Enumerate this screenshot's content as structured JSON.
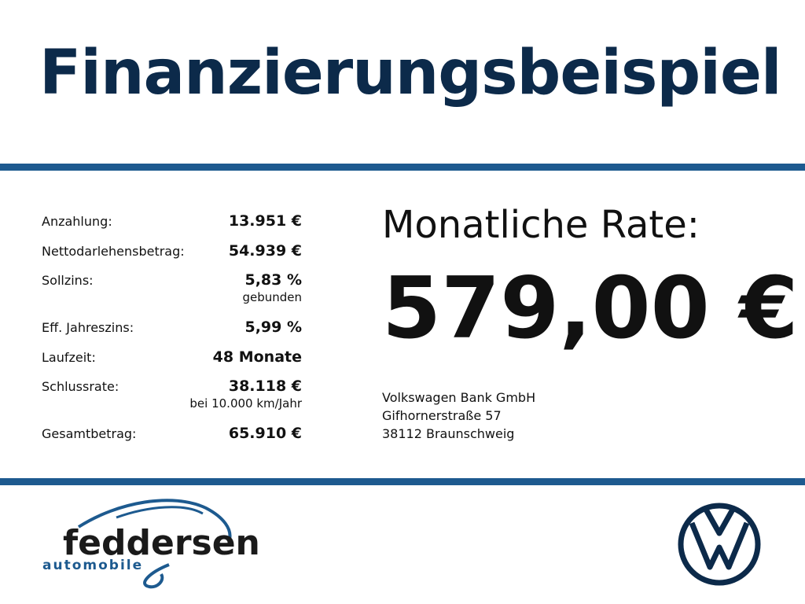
{
  "header": {
    "title": "Finanzierungsbeispiel"
  },
  "details": [
    {
      "label": "Anzahlung:",
      "value": "13.951 €"
    },
    {
      "label": "Nettodarlehensbetrag:",
      "value": "54.939 €"
    },
    {
      "label": "Sollzins:",
      "value": "5,83 %",
      "note": "gebunden"
    },
    {
      "label": "Eff. Jahreszins:",
      "value": "5,99 %"
    },
    {
      "label": "Laufzeit:",
      "value": "48 Monate"
    },
    {
      "label": "Schlussrate:",
      "value": "38.118 €",
      "note": "bei 10.000 km/Jahr"
    },
    {
      "label": "Gesamtbetrag:",
      "value": "65.910 €"
    }
  ],
  "rate": {
    "label": "Monatliche Rate:",
    "value": "579,00 €"
  },
  "bank": {
    "lines": [
      "Volkswagen Bank GmbH",
      "Gifhornerstraße 57",
      "38112 Braunschweig"
    ]
  },
  "logo": {
    "name": "feddersen",
    "tagline": "automobile"
  }
}
